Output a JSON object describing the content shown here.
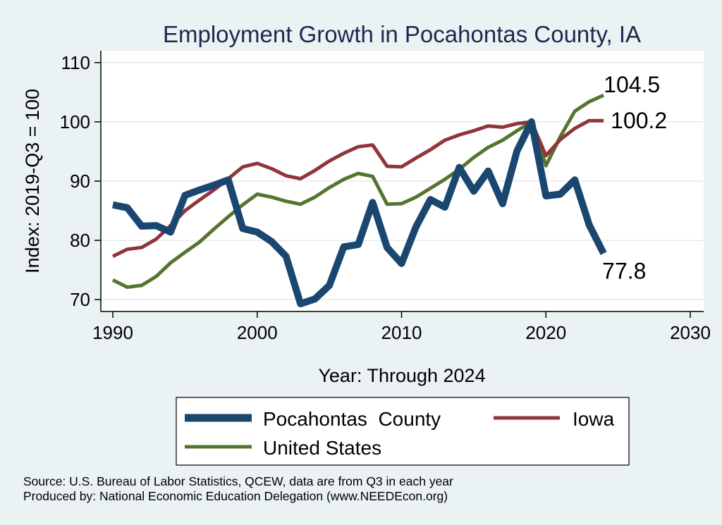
{
  "chart_data": {
    "type": "line",
    "title": "Employment Growth in Pocahontas County, IA",
    "xlabel": "Year: Through 2024",
    "ylabel": "Index: 2019-Q3 = 100",
    "xlim": [
      1990,
      2030
    ],
    "ylim": [
      68,
      112
    ],
    "xticks": [
      1990,
      2000,
      2010,
      2020,
      2030
    ],
    "yticks": [
      70,
      80,
      90,
      100,
      110
    ],
    "grid": true,
    "legend_position": "bottom",
    "x": [
      1990,
      1991,
      1992,
      1993,
      1994,
      1995,
      1996,
      1997,
      1998,
      1999,
      2000,
      2001,
      2002,
      2003,
      2004,
      2005,
      2006,
      2007,
      2008,
      2009,
      2010,
      2011,
      2012,
      2013,
      2014,
      2015,
      2016,
      2017,
      2018,
      2019,
      2020,
      2021,
      2022,
      2023,
      2024
    ],
    "series": [
      {
        "name": "Pocahontas  County",
        "color": "#1a476f",
        "end_label": "77.8",
        "values": [
          86.0,
          85.5,
          82.4,
          82.5,
          81.4,
          87.6,
          88.5,
          89.3,
          90.2,
          82.0,
          81.4,
          79.8,
          77.3,
          69.3,
          70.1,
          72.4,
          78.9,
          79.3,
          86.4,
          78.8,
          76.1,
          82.3,
          86.9,
          85.6,
          92.3,
          88.3,
          91.7,
          86.2,
          95.1,
          100.0,
          87.5,
          87.8,
          90.2,
          82.6,
          77.8
        ]
      },
      {
        "name": "Iowa",
        "color": "#90353b",
        "end_label": "100.2",
        "values": [
          77.3,
          78.5,
          78.8,
          80.2,
          82.5,
          85.0,
          86.8,
          88.5,
          90.4,
          92.4,
          93.0,
          92.1,
          90.9,
          90.4,
          91.8,
          93.4,
          94.7,
          95.8,
          96.1,
          92.5,
          92.4,
          93.9,
          95.3,
          96.9,
          97.8,
          98.5,
          99.3,
          99.1,
          99.7,
          100.0,
          94.3,
          97.0,
          98.9,
          100.2,
          100.2
        ]
      },
      {
        "name": "United States",
        "color": "#55752f",
        "end_label": "104.5",
        "values": [
          73.3,
          72.1,
          72.4,
          73.9,
          76.2,
          78.0,
          79.7,
          81.9,
          84.0,
          86.0,
          87.8,
          87.3,
          86.6,
          86.1,
          87.3,
          88.9,
          90.3,
          91.3,
          90.8,
          86.1,
          86.2,
          87.3,
          88.8,
          90.3,
          92.0,
          94.0,
          95.7,
          96.9,
          98.5,
          100.0,
          92.6,
          97.5,
          101.8,
          103.4,
          104.5
        ]
      }
    ],
    "notes": [
      "Source: U.S. Bureau of Labor Statistics, QCEW, data are from Q3 in each year",
      "Produced by: National Economic Education Delegation (www.NEEDEcon.org)"
    ]
  }
}
